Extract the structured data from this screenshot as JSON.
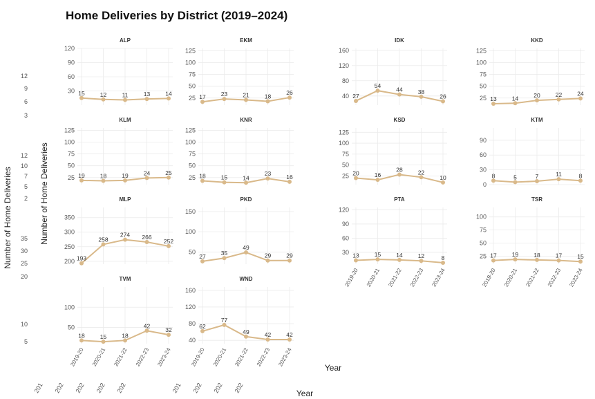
{
  "chart_data": {
    "type": "line",
    "title": "Home Deliveries by District (2019–2024)",
    "xlabel": "Year",
    "ylabel": "Number of Home Deliveries",
    "x": [
      "2019-20",
      "2020-21",
      "2021-22",
      "2022-23",
      "2023-24"
    ],
    "line_color": "#d9b98a",
    "grid": true,
    "facets": [
      {
        "name": "ALP",
        "values": [
          15,
          12,
          11,
          13,
          14
        ],
        "ylim": [
          0,
          120
        ],
        "yticks": [
          30,
          60,
          90,
          120
        ]
      },
      {
        "name": "EKM",
        "values": [
          17,
          23,
          21,
          18,
          26
        ],
        "ylim": [
          10,
          130
        ],
        "yticks": [
          25,
          50,
          75,
          100,
          125
        ]
      },
      {
        "name": "IDK",
        "values": [
          27,
          54,
          44,
          38,
          26
        ],
        "ylim": [
          16,
          165
        ],
        "yticks": [
          40,
          80,
          120,
          160
        ]
      },
      {
        "name": "KKD",
        "values": [
          13,
          14,
          20,
          22,
          24
        ],
        "ylim": [
          10,
          130
        ],
        "yticks": [
          25,
          50,
          75,
          100,
          125
        ]
      },
      {
        "name": "KLM",
        "values": [
          19,
          18,
          19,
          24,
          25
        ],
        "ylim": [
          10,
          130
        ],
        "yticks": [
          25,
          50,
          75,
          100,
          125
        ]
      },
      {
        "name": "KNR",
        "values": [
          18,
          15,
          14,
          23,
          16
        ],
        "ylim": [
          10,
          130
        ],
        "yticks": [
          25,
          50,
          75,
          100,
          125
        ]
      },
      {
        "name": "KSD",
        "values": [
          20,
          16,
          28,
          22,
          10
        ],
        "ylim": [
          5,
          135
        ],
        "yticks": [
          25,
          50,
          75,
          100,
          125
        ]
      },
      {
        "name": "KTM",
        "values": [
          8,
          5,
          7,
          11,
          8
        ],
        "ylim": [
          0,
          115
        ],
        "yticks": [
          0,
          30,
          60,
          90
        ]
      },
      {
        "name": "MLP",
        "values": [
          193,
          258,
          274,
          266,
          252
        ],
        "ylim": [
          190,
          385
        ],
        "yticks": [
          200,
          250,
          300,
          350
        ]
      },
      {
        "name": "PKD",
        "values": [
          27,
          35,
          49,
          29,
          29
        ],
        "ylim": [
          20,
          160
        ],
        "yticks": [
          50,
          100,
          150
        ]
      },
      {
        "name": "PTA",
        "values": [
          13,
          15,
          14,
          12,
          8
        ],
        "ylim": [
          5,
          125
        ],
        "yticks": [
          30,
          60,
          90,
          120
        ]
      },
      {
        "name": "TSR",
        "values": [
          17,
          19,
          18,
          17,
          15
        ],
        "ylim": [
          10,
          118
        ],
        "yticks": [
          25,
          50,
          75,
          100
        ]
      },
      {
        "name": "TVM",
        "values": [
          18,
          15,
          18,
          42,
          32
        ],
        "ylim": [
          10,
          150
        ],
        "yticks": [
          50,
          100
        ]
      },
      {
        "name": "WND",
        "values": [
          62,
          77,
          49,
          42,
          42
        ],
        "ylim": [
          32,
          168
        ],
        "yticks": [
          40,
          80,
          120,
          160
        ]
      }
    ]
  },
  "ghost_text": {
    "ylabel": "Number of Home Deliveries",
    "xlabel": "Year",
    "ticks": [
      "12",
      "9",
      "6",
      "3",
      "12",
      "10",
      "7",
      "5",
      "2",
      "35",
      "30",
      "25",
      "20",
      "10",
      "5"
    ],
    "xticks": [
      "201",
      "202",
      "202",
      "202",
      "202",
      "201",
      "202",
      "202",
      "202"
    ]
  }
}
